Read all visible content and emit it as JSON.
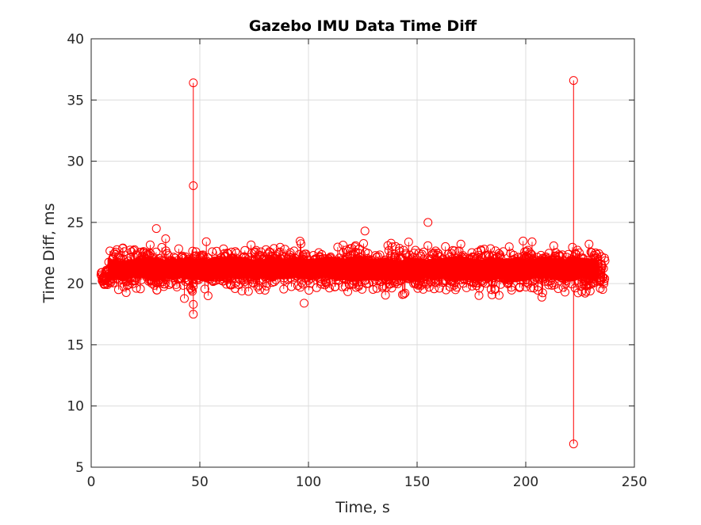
{
  "chart_data": {
    "type": "scatter",
    "title": "Gazebo IMU Data Time Diff",
    "xlabel": "Time, s",
    "ylabel": "Time Diff, ms",
    "xlim": [
      0,
      250
    ],
    "ylim": [
      5,
      40
    ],
    "xticks": [
      "0",
      "50",
      "100",
      "150",
      "200",
      "250"
    ],
    "yticks": [
      "5",
      "10",
      "15",
      "20",
      "25",
      "30",
      "35",
      "40"
    ],
    "grid": true,
    "legend": "none",
    "series_color": "#ff0000",
    "marker": "circle",
    "x_range_of_data": [
      4.5,
      236.5
    ],
    "typical_band": {
      "low": 19.5,
      "high": 23.0,
      "center": 21.2
    },
    "notable_points": [
      {
        "x": 47,
        "y": 36.4
      },
      {
        "x": 47,
        "y": 28.0
      },
      {
        "x": 47,
        "y": 17.5
      },
      {
        "x": 47,
        "y": 18.3
      },
      {
        "x": 222,
        "y": 36.6
      },
      {
        "x": 222,
        "y": 6.9
      },
      {
        "x": 155,
        "y": 25.0
      },
      {
        "x": 30,
        "y": 24.5
      },
      {
        "x": 126,
        "y": 24.3
      },
      {
        "x": 98,
        "y": 18.4
      }
    ],
    "spikes": [
      {
        "x": 47,
        "y_min": 17.5,
        "y_max": 36.4
      },
      {
        "x": 222,
        "y_min": 6.9,
        "y_max": 36.6
      }
    ]
  }
}
